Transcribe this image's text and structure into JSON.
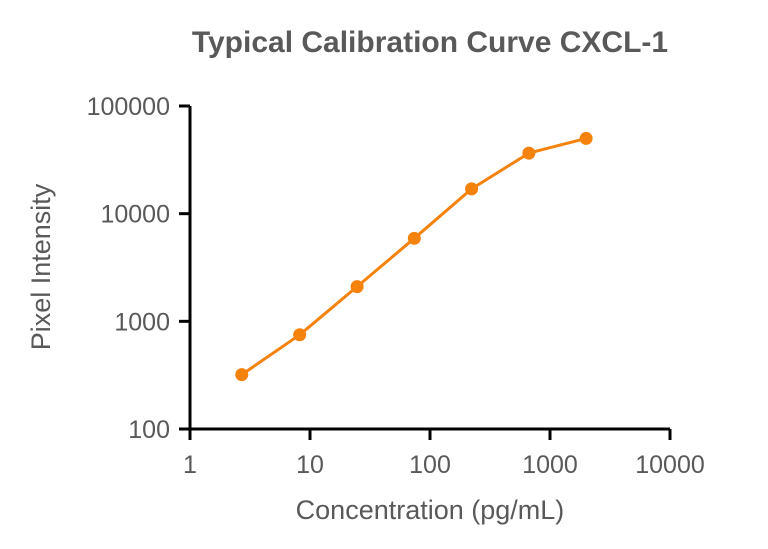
{
  "chart_data": {
    "type": "line",
    "title": "Typical Calibration Curve CXCL-1",
    "xlabel": "Concentration (pg/mL)",
    "ylabel": "Pixel Intensity",
    "x_scale": "log",
    "y_scale": "log",
    "xlim": [
      1,
      10000
    ],
    "ylim": [
      100,
      100000
    ],
    "x_ticks": [
      "1",
      "10",
      "100",
      "1000",
      "10000"
    ],
    "y_ticks": [
      "100",
      "1000",
      "10000",
      "100000"
    ],
    "grid": false,
    "legend": "none",
    "series": [
      {
        "x": [
          2.7,
          8.2,
          24.7,
          74,
          222,
          667,
          2000
        ],
        "y": [
          320,
          750,
          2100,
          5900,
          17000,
          36500,
          50000
        ]
      }
    ],
    "colors": {
      "series": "#f5820b",
      "axis": "#000000",
      "text": "#595959"
    }
  }
}
